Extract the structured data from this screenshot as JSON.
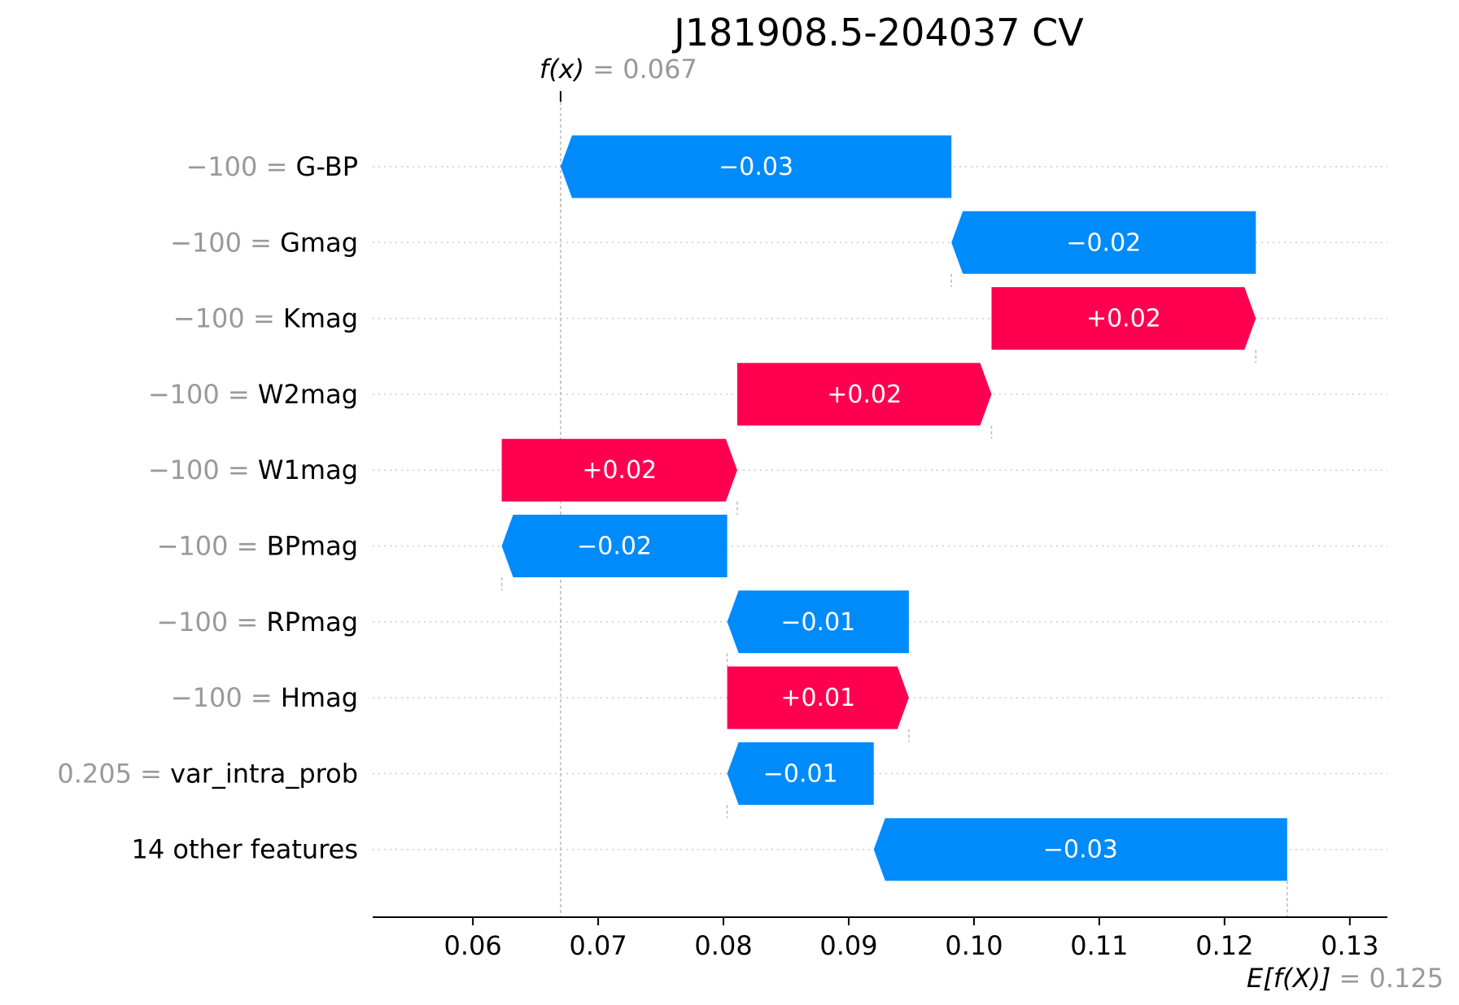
{
  "chart_data": {
    "type": "waterfall",
    "title": "J181908.5-204037 CV",
    "fx": {
      "label_var": "x",
      "value": "0.067",
      "numeric": 0.067
    },
    "expected": {
      "label_var": "X",
      "value": "0.125",
      "numeric": 0.125
    },
    "xlim": [
      0.052,
      0.133
    ],
    "xticks": [
      0.06,
      0.07,
      0.08,
      0.09,
      0.1,
      0.11,
      0.12,
      0.13
    ],
    "xtick_labels": [
      "0.06",
      "0.07",
      "0.08",
      "0.09",
      "0.10",
      "0.11",
      "0.12",
      "0.13"
    ],
    "colors": {
      "positive": "#ff0051",
      "negative": "#008bfb",
      "value_text": "#999999"
    },
    "features": [
      {
        "value": "−100",
        "name": "G-BP",
        "start": 0.0982,
        "end": 0.067,
        "label": "−0.03"
      },
      {
        "value": "−100",
        "name": "Gmag",
        "start": 0.1225,
        "end": 0.0982,
        "label": "−0.02"
      },
      {
        "value": "−100",
        "name": "Kmag",
        "start": 0.1014,
        "end": 0.1225,
        "label": "+0.02"
      },
      {
        "value": "−100",
        "name": "W2mag",
        "start": 0.0811,
        "end": 0.1014,
        "label": "+0.02"
      },
      {
        "value": "−100",
        "name": "W1mag",
        "start": 0.0623,
        "end": 0.0811,
        "label": "+0.02"
      },
      {
        "value": "−100",
        "name": "BPmag",
        "start": 0.0803,
        "end": 0.0623,
        "label": "−0.02"
      },
      {
        "value": "−100",
        "name": "RPmag",
        "start": 0.0948,
        "end": 0.0803,
        "label": "−0.01"
      },
      {
        "value": "−100",
        "name": "Hmag",
        "start": 0.0803,
        "end": 0.0948,
        "label": "+0.01"
      },
      {
        "value": "0.205",
        "name": "var_intra_prob",
        "start": 0.092,
        "end": 0.0803,
        "label": "−0.01"
      },
      {
        "value": "",
        "name": "14 other features",
        "start": 0.125,
        "end": 0.092,
        "label": "−0.03"
      }
    ]
  }
}
